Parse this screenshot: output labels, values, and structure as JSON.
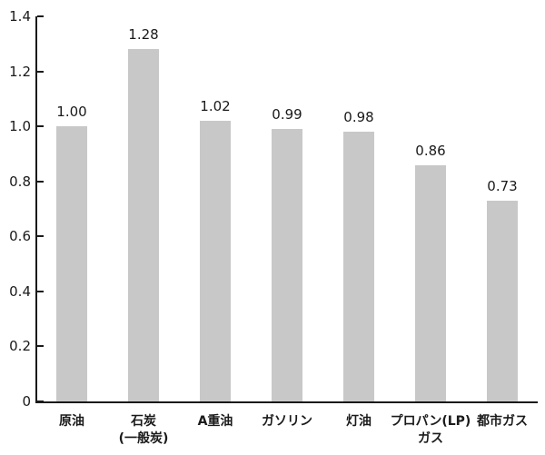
{
  "chart_data": {
    "type": "bar",
    "title": "",
    "xlabel": "",
    "ylabel": "",
    "categories": [
      [
        "原油"
      ],
      [
        "石炭",
        "(一般炭)"
      ],
      [
        "A重油"
      ],
      [
        "ガソリン"
      ],
      [
        "灯油"
      ],
      [
        "プロパン(LP)",
        "ガス"
      ],
      [
        "都市ガス"
      ]
    ],
    "values": [
      1.0,
      1.28,
      1.02,
      0.99,
      0.98,
      0.86,
      0.73
    ],
    "value_labels": [
      "1.00",
      "1.28",
      "1.02",
      "0.99",
      "0.98",
      "0.86",
      "0.73"
    ],
    "ylim": [
      0,
      1.4
    ],
    "yticks": [
      0,
      0.2,
      0.4,
      0.6,
      0.8,
      1.0,
      1.2,
      1.4
    ],
    "ytick_labels": [
      "0",
      "0.2",
      "0.4",
      "0.6",
      "0.8",
      "1.0",
      "1.2",
      "1.4"
    ],
    "grid": false,
    "legend": "none",
    "bar_color": "#c8c8c8",
    "axis_color": "#1a1a1a"
  }
}
